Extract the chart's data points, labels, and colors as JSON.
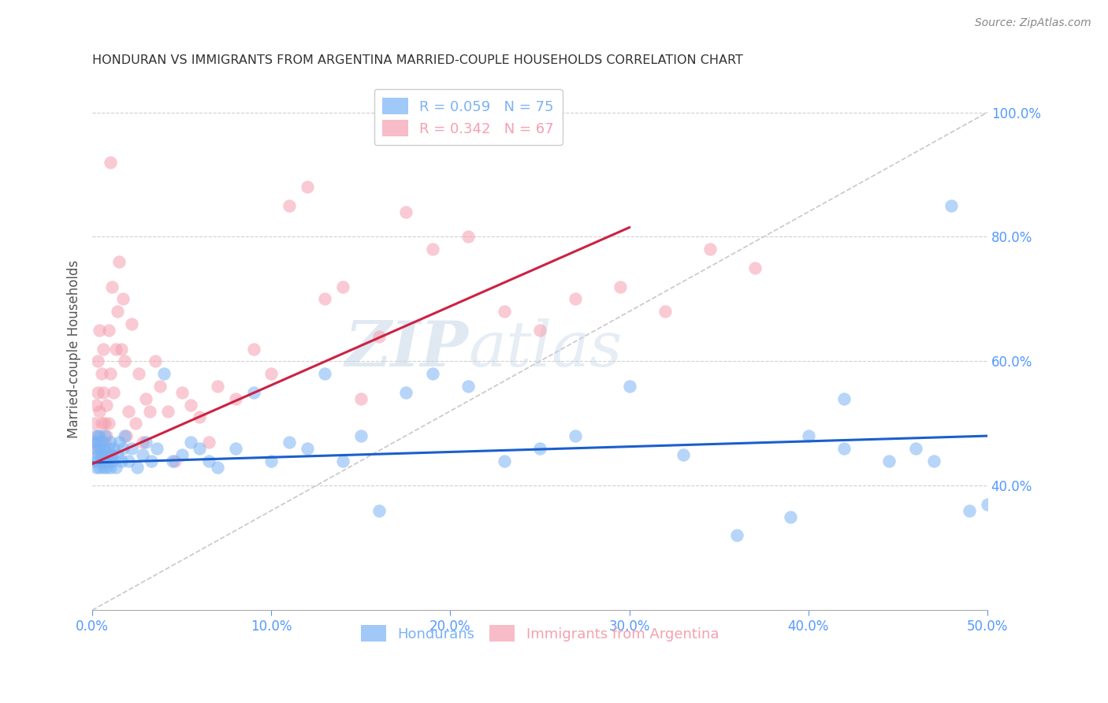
{
  "title": "HONDURAN VS IMMIGRANTS FROM ARGENTINA MARRIED-COUPLE HOUSEHOLDS CORRELATION CHART",
  "source": "Source: ZipAtlas.com",
  "ylabel": "Married-couple Households",
  "watermark": "ZIPatlas",
  "xlim": [
    0.0,
    0.5
  ],
  "ylim": [
    0.2,
    1.04
  ],
  "yticks": [
    0.4,
    0.6,
    0.8,
    1.0
  ],
  "xticks": [
    0.0,
    0.1,
    0.2,
    0.3,
    0.4,
    0.5
  ],
  "legend_entries": [
    {
      "label": "Hondurans",
      "R": "0.059",
      "N": "75",
      "color": "#7ab3f5"
    },
    {
      "label": "Immigrants from Argentina",
      "R": "0.342",
      "N": "67",
      "color": "#f5a0b0"
    }
  ],
  "blue_color": "#7ab3f5",
  "pink_color": "#f5a0b0",
  "blue_line_color": "#1a5fcc",
  "pink_line_color": "#cc2244",
  "ref_line_color": "#c8c8c8",
  "grid_color": "#d0d0d0",
  "title_color": "#333333",
  "axis_tick_color": "#5599ff",
  "blue_scatter_x": [
    0.001,
    0.001,
    0.002,
    0.002,
    0.002,
    0.003,
    0.003,
    0.003,
    0.004,
    0.004,
    0.004,
    0.005,
    0.005,
    0.005,
    0.006,
    0.006,
    0.007,
    0.007,
    0.008,
    0.008,
    0.009,
    0.009,
    0.01,
    0.01,
    0.011,
    0.011,
    0.012,
    0.013,
    0.014,
    0.015,
    0.016,
    0.017,
    0.018,
    0.02,
    0.022,
    0.025,
    0.028,
    0.03,
    0.033,
    0.036,
    0.04,
    0.045,
    0.05,
    0.055,
    0.06,
    0.065,
    0.07,
    0.08,
    0.09,
    0.1,
    0.11,
    0.12,
    0.13,
    0.14,
    0.15,
    0.16,
    0.175,
    0.19,
    0.21,
    0.23,
    0.25,
    0.27,
    0.3,
    0.33,
    0.36,
    0.39,
    0.42,
    0.445,
    0.46,
    0.47,
    0.48,
    0.49,
    0.5,
    0.4,
    0.42
  ],
  "blue_scatter_y": [
    0.47,
    0.44,
    0.46,
    0.43,
    0.48,
    0.45,
    0.44,
    0.47,
    0.43,
    0.46,
    0.48,
    0.44,
    0.45,
    0.47,
    0.43,
    0.46,
    0.44,
    0.48,
    0.43,
    0.45,
    0.46,
    0.44,
    0.47,
    0.43,
    0.45,
    0.44,
    0.46,
    0.43,
    0.45,
    0.47,
    0.44,
    0.46,
    0.48,
    0.44,
    0.46,
    0.43,
    0.45,
    0.47,
    0.44,
    0.46,
    0.58,
    0.44,
    0.45,
    0.47,
    0.46,
    0.44,
    0.43,
    0.46,
    0.55,
    0.44,
    0.47,
    0.46,
    0.58,
    0.44,
    0.48,
    0.36,
    0.55,
    0.58,
    0.56,
    0.44,
    0.46,
    0.48,
    0.56,
    0.45,
    0.32,
    0.35,
    0.54,
    0.44,
    0.46,
    0.44,
    0.85,
    0.36,
    0.37,
    0.48,
    0.46
  ],
  "pink_scatter_x": [
    0.001,
    0.001,
    0.002,
    0.002,
    0.003,
    0.003,
    0.003,
    0.004,
    0.004,
    0.005,
    0.005,
    0.005,
    0.006,
    0.006,
    0.007,
    0.007,
    0.008,
    0.008,
    0.009,
    0.009,
    0.01,
    0.01,
    0.011,
    0.012,
    0.013,
    0.014,
    0.015,
    0.016,
    0.017,
    0.018,
    0.019,
    0.02,
    0.022,
    0.024,
    0.026,
    0.028,
    0.03,
    0.032,
    0.035,
    0.038,
    0.042,
    0.046,
    0.05,
    0.055,
    0.06,
    0.065,
    0.07,
    0.08,
    0.09,
    0.1,
    0.11,
    0.12,
    0.13,
    0.14,
    0.15,
    0.16,
    0.175,
    0.19,
    0.21,
    0.23,
    0.25,
    0.27,
    0.295,
    0.32,
    0.345,
    0.37,
    0.01
  ],
  "pink_scatter_y": [
    0.5,
    0.46,
    0.53,
    0.47,
    0.55,
    0.6,
    0.48,
    0.52,
    0.65,
    0.5,
    0.58,
    0.45,
    0.62,
    0.55,
    0.5,
    0.47,
    0.53,
    0.48,
    0.65,
    0.5,
    0.58,
    0.45,
    0.72,
    0.55,
    0.62,
    0.68,
    0.76,
    0.62,
    0.7,
    0.6,
    0.48,
    0.52,
    0.66,
    0.5,
    0.58,
    0.47,
    0.54,
    0.52,
    0.6,
    0.56,
    0.52,
    0.44,
    0.55,
    0.53,
    0.51,
    0.47,
    0.56,
    0.54,
    0.62,
    0.58,
    0.85,
    0.88,
    0.7,
    0.72,
    0.54,
    0.64,
    0.84,
    0.78,
    0.8,
    0.68,
    0.65,
    0.7,
    0.72,
    0.68,
    0.78,
    0.75,
    0.92
  ],
  "blue_line_x": [
    0.0,
    0.5
  ],
  "blue_line_y": [
    0.437,
    0.48
  ],
  "pink_line_x": [
    0.0,
    0.3
  ],
  "pink_line_y": [
    0.435,
    0.815
  ],
  "ref_line_x": [
    0.0,
    0.5
  ],
  "ref_line_y": [
    0.2,
    1.0
  ]
}
